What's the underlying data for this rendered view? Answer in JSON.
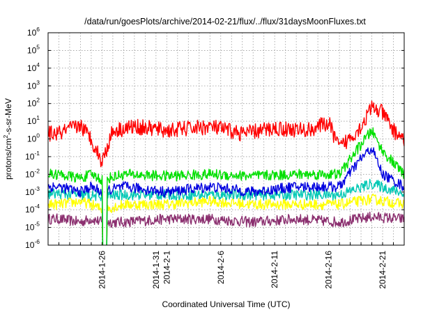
{
  "chart_data": {
    "type": "line",
    "title": "/data/run/goesPlots/archive/2014-02-21/flux/../flux/31daysMoonFluxes.txt",
    "xlabel": "Coordinated Universal Time (UTC)",
    "ylabel": "protons/cm2-s-sr-MeV",
    "ylabel_parts": {
      "main": "protons/cm",
      "sup": "2",
      "rest": "-s-sr-MeV"
    },
    "x_range": [
      "2014-01-21",
      "2014-02-23"
    ],
    "x_ticks": [
      {
        "date": "2014-01-26",
        "label": "2014-1-26"
      },
      {
        "date": "2014-01-31",
        "label": "2014-1-31"
      },
      {
        "date": "2014-02-01",
        "label": "2014-2-1"
      },
      {
        "date": "2014-02-06",
        "label": "2014-2-6"
      },
      {
        "date": "2014-02-11",
        "label": "2014-2-11"
      },
      {
        "date": "2014-02-16",
        "label": "2014-2-16"
      },
      {
        "date": "2014-02-21",
        "label": "2014-2-21"
      }
    ],
    "y_scale": "log",
    "y_range": [
      1e-06,
      1000000.0
    ],
    "y_tick_exponents": [
      -6,
      -5,
      -4,
      -3,
      -2,
      -1,
      0,
      1,
      2,
      3,
      4,
      5,
      6
    ],
    "y_tick_base": "10",
    "grid": true,
    "legend": "none",
    "series": [
      {
        "color": "#8b2f6f",
        "points": [
          [
            "2014-01-22",
            3e-05
          ],
          [
            "2014-01-24",
            2e-05
          ],
          [
            "2014-01-25",
            3e-05
          ],
          [
            "2014-01-26",
            2e-05
          ],
          [
            "2014-01-28",
            2e-05
          ],
          [
            "2014-02-01",
            3e-05
          ],
          [
            "2014-02-05",
            3e-05
          ],
          [
            "2014-02-09",
            2e-05
          ],
          [
            "2014-02-13",
            3e-05
          ],
          [
            "2014-02-17",
            2e-05
          ],
          [
            "2014-02-20",
            4e-05
          ],
          [
            "2014-02-23",
            3e-05
          ]
        ]
      },
      {
        "color": "#ffff00",
        "points": [
          [
            "2014-01-22",
            0.0002
          ],
          [
            "2014-01-24",
            0.0003
          ],
          [
            "2014-01-25",
            0.0002
          ],
          [
            "2014-01-26",
            0.0001
          ],
          [
            "2014-01-28",
            0.0002
          ],
          [
            "2014-02-01",
            0.0002
          ],
          [
            "2014-02-05",
            0.0003
          ],
          [
            "2014-02-09",
            0.0002
          ],
          [
            "2014-02-13",
            0.0002
          ],
          [
            "2014-02-17",
            0.0002
          ],
          [
            "2014-02-20",
            0.0004
          ],
          [
            "2014-02-23",
            0.0002
          ]
        ]
      },
      {
        "color": "#00c8b4",
        "points": [
          [
            "2014-01-22",
            0.0008
          ],
          [
            "2014-01-24",
            0.0007
          ],
          [
            "2014-01-25",
            0.0006
          ],
          [
            "2014-01-26",
            0.0006
          ],
          [
            "2014-01-28",
            0.0007
          ],
          [
            "2014-02-01",
            0.0007
          ],
          [
            "2014-02-05",
            0.0007
          ],
          [
            "2014-02-09",
            0.0007
          ],
          [
            "2014-02-13",
            0.0007
          ],
          [
            "2014-02-17",
            0.0007
          ],
          [
            "2014-02-20",
            0.003
          ],
          [
            "2014-02-23",
            0.0008
          ]
        ]
      },
      {
        "color": "#0000e0",
        "points": [
          [
            "2014-01-22",
            0.002
          ],
          [
            "2014-01-24",
            0.001
          ],
          [
            "2014-01-25",
            0.002
          ],
          [
            "2014-01-26",
            0.001
          ],
          [
            "2014-01-28",
            0.002
          ],
          [
            "2014-02-01",
            0.001
          ],
          [
            "2014-02-05",
            0.002
          ],
          [
            "2014-02-09",
            0.001
          ],
          [
            "2014-02-13",
            0.002
          ],
          [
            "2014-02-17",
            0.002
          ],
          [
            "2014-02-19",
            0.08
          ],
          [
            "2014-02-20",
            0.3
          ],
          [
            "2014-02-21",
            0.01
          ],
          [
            "2014-02-23",
            0.002
          ]
        ]
      },
      {
        "color": "#00e000",
        "points": [
          [
            "2014-01-22",
            0.01
          ],
          [
            "2014-01-24",
            0.006
          ],
          [
            "2014-01-25",
            0.01
          ],
          [
            "2014-01-26",
            0.005
          ],
          [
            "2014-01-28",
            0.01
          ],
          [
            "2014-02-01",
            0.008
          ],
          [
            "2014-02-05",
            0.01
          ],
          [
            "2014-02-09",
            0.008
          ],
          [
            "2014-02-13",
            0.01
          ],
          [
            "2014-02-17",
            0.01
          ],
          [
            "2014-02-19",
            0.5
          ],
          [
            "2014-02-20",
            3
          ],
          [
            "2014-02-21",
            0.2
          ],
          [
            "2014-02-23",
            0.01
          ]
        ]
      },
      {
        "color": "#ff0000",
        "points": [
          [
            "2014-01-22",
            2
          ],
          [
            "2014-01-24",
            6
          ],
          [
            "2014-01-25",
            1
          ],
          [
            "2014-01-26",
            0.05
          ],
          [
            "2014-01-27",
            3
          ],
          [
            "2014-01-29",
            5
          ],
          [
            "2014-02-01",
            3
          ],
          [
            "2014-02-05",
            5
          ],
          [
            "2014-02-08",
            2
          ],
          [
            "2014-02-11",
            4
          ],
          [
            "2014-02-14",
            3
          ],
          [
            "2014-02-16",
            8
          ],
          [
            "2014-02-17",
            0.3
          ],
          [
            "2014-02-19",
            5
          ],
          [
            "2014-02-20",
            60
          ],
          [
            "2014-02-21",
            30
          ],
          [
            "2014-02-22",
            3
          ],
          [
            "2014-02-23",
            1
          ]
        ]
      }
    ]
  }
}
